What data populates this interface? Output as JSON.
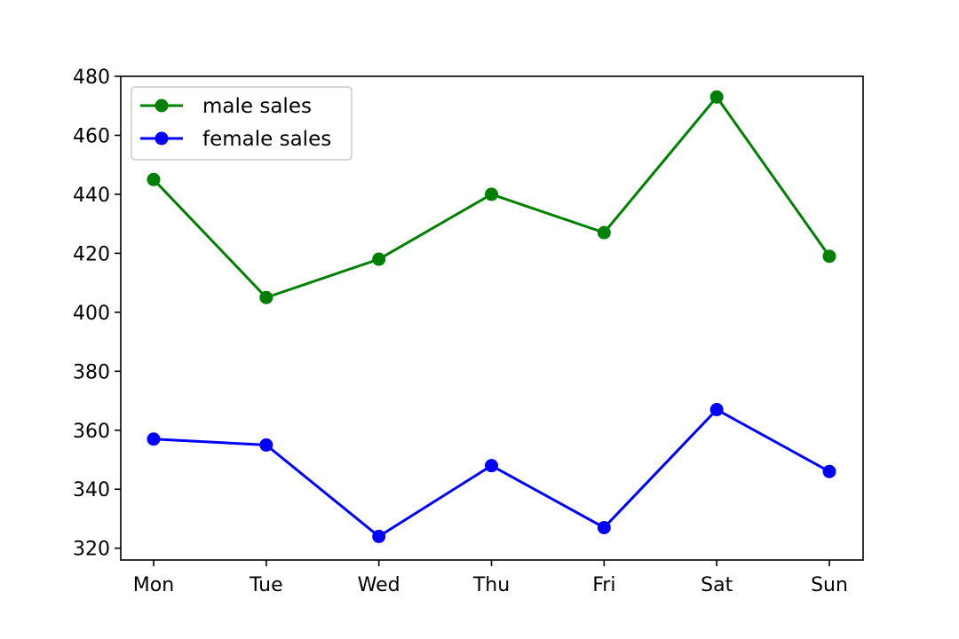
{
  "chart_data": {
    "type": "line",
    "title": "",
    "xlabel": "",
    "ylabel": "",
    "categories": [
      "Mon",
      "Tue",
      "Wed",
      "Thu",
      "Fri",
      "Sat",
      "Sun"
    ],
    "ylim": [
      316,
      480
    ],
    "yticks": [
      320,
      340,
      360,
      380,
      400,
      420,
      440,
      460,
      480
    ],
    "grid": false,
    "legend": "top-left",
    "series": [
      {
        "name": "male sales",
        "color": "#008000",
        "marker": "circle",
        "values": [
          445,
          405,
          418,
          440,
          427,
          473,
          419
        ]
      },
      {
        "name": "female sales",
        "color": "#0000ff",
        "marker": "circle",
        "values": [
          357,
          355,
          324,
          348,
          327,
          367,
          346
        ]
      }
    ]
  }
}
